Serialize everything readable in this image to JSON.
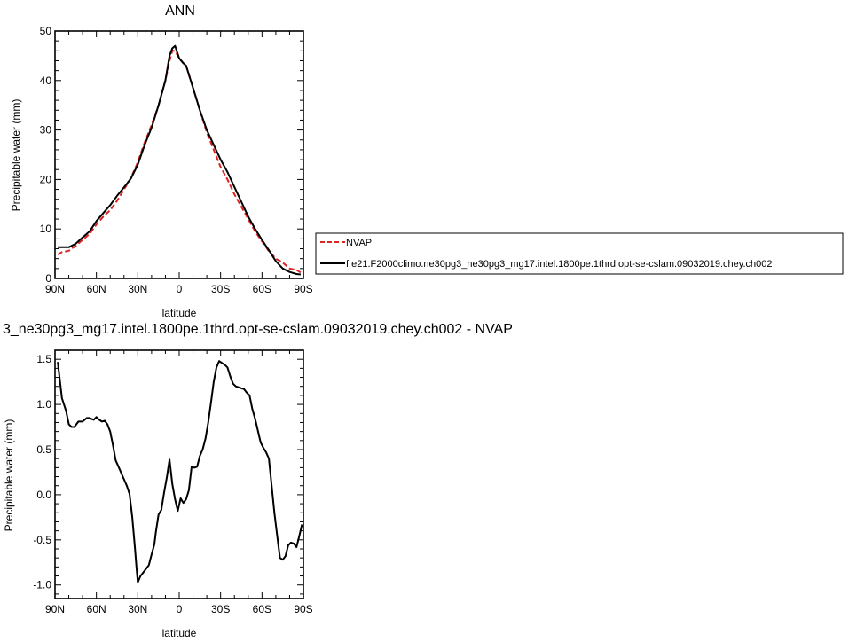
{
  "chart_data": [
    {
      "type": "line",
      "title": "ANN",
      "xlabel": "latitude",
      "ylabel": "Precipitable water (mm)",
      "xlim": [
        90,
        -90
      ],
      "ylim": [
        0,
        50
      ],
      "xticks": [
        90,
        60,
        30,
        0,
        -30,
        -60,
        -90
      ],
      "xtick_labels": [
        "90N",
        "60N",
        "30N",
        "0",
        "30S",
        "60S",
        "90S"
      ],
      "yticks": [
        0,
        10,
        20,
        30,
        40,
        50
      ],
      "ytick_labels": [
        "0",
        "10",
        "20",
        "30",
        "40",
        "50"
      ],
      "grid": false,
      "legend_placement": "right",
      "series": [
        {
          "name": "NVAP",
          "color": "#dd2222",
          "dash": "dashed",
          "x": [
            88,
            85,
            80,
            75,
            70,
            65,
            60,
            55,
            50,
            45,
            40,
            35,
            30,
            25,
            20,
            15,
            10,
            7,
            5,
            3,
            0,
            -3,
            -5,
            -10,
            -15,
            -20,
            -25,
            -30,
            -35,
            -40,
            -45,
            -50,
            -55,
            -60,
            -65,
            -70,
            -75,
            -80,
            -85,
            -88
          ],
          "y": [
            4.8,
            5.3,
            5.6,
            6.6,
            7.8,
            9.0,
            10.9,
            12.5,
            13.8,
            15.7,
            18.0,
            20.3,
            23.5,
            27.5,
            31.0,
            35.0,
            40.0,
            44.0,
            46.0,
            46.0,
            44.5,
            43.5,
            43.0,
            38.5,
            34.0,
            29.5,
            26.0,
            22.5,
            20.0,
            17.0,
            14.5,
            12.0,
            9.5,
            7.5,
            5.5,
            4.0,
            3.2,
            2.0,
            1.7,
            1.2
          ]
        },
        {
          "name": "f.e21.F2000climo.ne30pg3_ne30pg3_mg17.intel.1800pe.1thrd.opt-se-cslam.09032019.chey.ch002",
          "color": "#000000",
          "dash": "solid",
          "x": [
            88,
            85,
            80,
            75,
            70,
            65,
            60,
            55,
            50,
            45,
            40,
            35,
            30,
            25,
            20,
            15,
            10,
            7,
            5,
            3,
            0,
            -3,
            -5,
            -10,
            -15,
            -20,
            -25,
            -30,
            -35,
            -40,
            -45,
            -50,
            -55,
            -60,
            -65,
            -70,
            -75,
            -80,
            -85,
            -88
          ],
          "y": [
            6.3,
            6.3,
            6.3,
            7.0,
            8.3,
            9.5,
            11.6,
            13.2,
            14.8,
            16.7,
            18.4,
            20.2,
            23.0,
            27.0,
            30.5,
            35.0,
            40.0,
            45.0,
            46.5,
            47.0,
            44.5,
            43.5,
            43.0,
            38.5,
            34.0,
            30.0,
            27.0,
            24.0,
            21.5,
            18.5,
            15.5,
            12.5,
            10.0,
            7.8,
            5.7,
            3.5,
            2.0,
            1.3,
            0.9,
            0.8
          ]
        }
      ]
    },
    {
      "type": "line",
      "title": "3_ne30pg3_mg17.intel.1800pe.1thrd.opt-se-cslam.09032019.chey.ch002 - NVAP",
      "xlabel": "latitude",
      "ylabel": "Precipitable water (mm)",
      "xlim": [
        90,
        -90
      ],
      "ylim": [
        -1.15,
        1.6
      ],
      "xticks": [
        90,
        60,
        30,
        0,
        -30,
        -60,
        -90
      ],
      "xtick_labels": [
        "90N",
        "60N",
        "30N",
        "0",
        "30S",
        "60S",
        "90S"
      ],
      "yticks": [
        -1.0,
        -0.5,
        0.0,
        0.5,
        1.0,
        1.5
      ],
      "ytick_labels": [
        "-1.0",
        "-0.5",
        "0.0",
        "0.5",
        "1.0",
        "1.5"
      ],
      "grid": false,
      "series": [
        {
          "color": "#000000",
          "dash": "solid",
          "x": [
            88,
            85,
            82,
            80,
            78,
            76,
            73,
            70,
            67,
            65,
            62,
            60,
            58,
            56,
            54,
            52,
            50,
            48,
            46,
            44,
            42,
            40,
            38,
            36,
            34,
            32,
            31,
            30,
            28,
            26,
            24,
            22,
            20,
            18,
            17,
            15,
            13,
            11,
            9,
            7,
            5,
            3,
            1,
            -1,
            -3,
            -5,
            -7,
            -9,
            -11,
            -13,
            -15,
            -17,
            -19,
            -21,
            -23,
            -25,
            -27,
            -29,
            -31,
            -33,
            -35,
            -37,
            -39,
            -41,
            -43,
            -45,
            -47,
            -49,
            -51,
            -53,
            -55,
            -57,
            -59,
            -61,
            -63,
            -65,
            -67,
            -69,
            -71,
            -73,
            -75,
            -77,
            -79,
            -81,
            -83,
            -85,
            -87,
            -89
          ],
          "y": [
            1.47,
            1.07,
            0.93,
            0.78,
            0.75,
            0.75,
            0.81,
            0.81,
            0.85,
            0.85,
            0.83,
            0.86,
            0.83,
            0.81,
            0.82,
            0.78,
            0.7,
            0.55,
            0.38,
            0.31,
            0.24,
            0.17,
            0.1,
            0.01,
            -0.25,
            -0.6,
            -0.8,
            -0.97,
            -0.9,
            -0.86,
            -0.82,
            -0.78,
            -0.66,
            -0.55,
            -0.42,
            -0.22,
            -0.17,
            0.02,
            0.19,
            0.39,
            0.12,
            -0.05,
            -0.18,
            -0.04,
            -0.09,
            -0.05,
            0.05,
            0.31,
            0.3,
            0.31,
            0.43,
            0.5,
            0.62,
            0.8,
            1.02,
            1.25,
            1.41,
            1.48,
            1.46,
            1.44,
            1.41,
            1.31,
            1.23,
            1.2,
            1.19,
            1.18,
            1.17,
            1.13,
            1.1,
            0.95,
            0.84,
            0.71,
            0.58,
            0.52,
            0.47,
            0.4,
            0.1,
            -0.2,
            -0.45,
            -0.7,
            -0.72,
            -0.68,
            -0.56,
            -0.53,
            -0.54,
            -0.58,
            -0.46,
            -0.33
          ]
        }
      ]
    }
  ]
}
